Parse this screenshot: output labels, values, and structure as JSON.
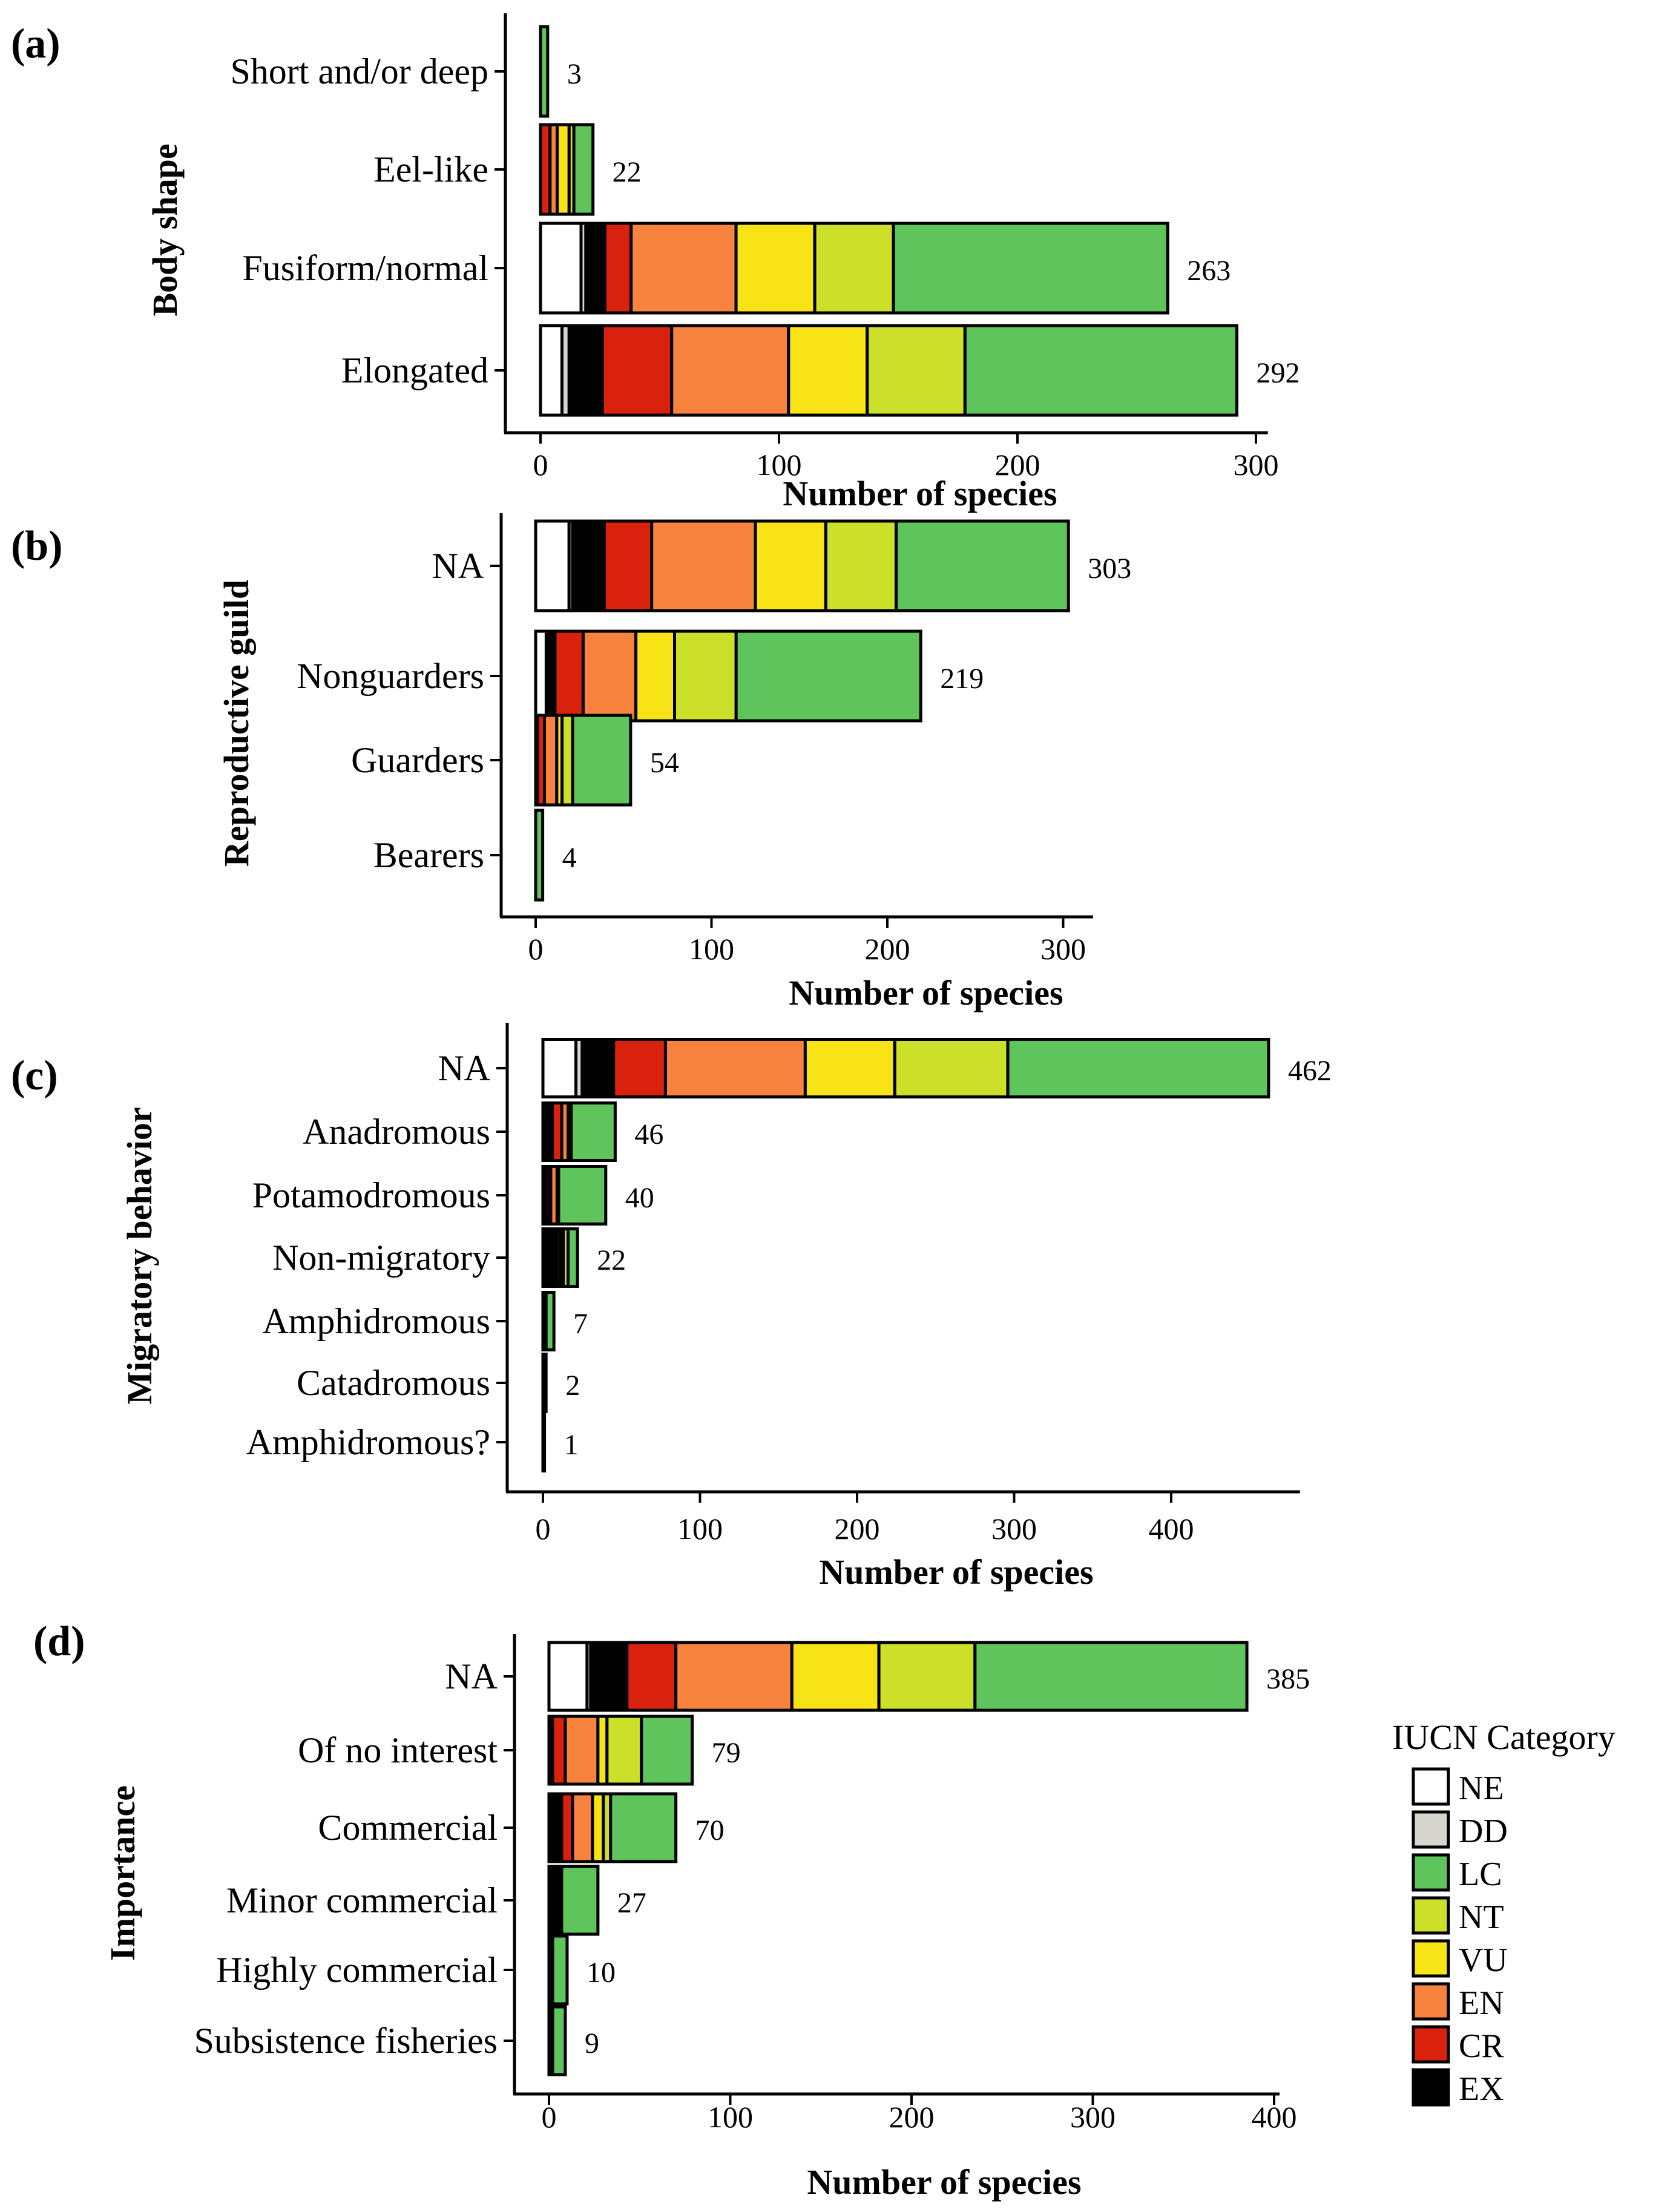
{
  "category_colors": {
    "NE": "#ffffff",
    "DD": "#d6d6ce",
    "LC": "#5fc45c",
    "NT": "#cce02a",
    "VU": "#f7e316",
    "EN": "#f8833f",
    "CR": "#d8220d",
    "EX": "#000000"
  },
  "legend": {
    "title": "IUCN Category",
    "items": [
      "NE",
      "DD",
      "LC",
      "NT",
      "VU",
      "EN",
      "CR",
      "EX"
    ]
  },
  "chart_data": [
    {
      "type": "bar",
      "orientation": "horizontal",
      "stacked": true,
      "panel": "(a)",
      "ylabel": "Body shape",
      "xlabel": "Number of species",
      "xticks": [
        0,
        100,
        200,
        300
      ],
      "xlim": [
        0,
        305
      ],
      "categories": [
        "Short and/or deep",
        "Eel-like",
        "Fusiform/normal",
        "Elongated"
      ],
      "stack_order": [
        "NE",
        "DD",
        "EX",
        "CR",
        "EN",
        "VU",
        "NT",
        "LC"
      ],
      "series": [
        {
          "name": "NE",
          "values": [
            0,
            0,
            17,
            9
          ]
        },
        {
          "name": "DD",
          "values": [
            0,
            0,
            2,
            3
          ]
        },
        {
          "name": "EX",
          "values": [
            0,
            0,
            8,
            14
          ]
        },
        {
          "name": "CR",
          "values": [
            0,
            4,
            11,
            29
          ]
        },
        {
          "name": "EN",
          "values": [
            0,
            3,
            44,
            49
          ]
        },
        {
          "name": "VU",
          "values": [
            0,
            5,
            33,
            33
          ]
        },
        {
          "name": "NT",
          "values": [
            0,
            2,
            33,
            41
          ]
        },
        {
          "name": "LC",
          "values": [
            3,
            8,
            115,
            114
          ]
        }
      ],
      "totals": [
        3,
        22,
        263,
        292
      ]
    },
    {
      "type": "bar",
      "orientation": "horizontal",
      "stacked": true,
      "panel": "(b)",
      "ylabel": "Reproductive guild",
      "xlabel": "Number of species",
      "xticks": [
        0,
        100,
        200,
        300
      ],
      "xlim": [
        0,
        317
      ],
      "categories": [
        "NA",
        "Nonguarders",
        "Guarders",
        "Bearers"
      ],
      "stack_order": [
        "NE",
        "DD",
        "EX",
        "CR",
        "EN",
        "VU",
        "NT",
        "LC"
      ],
      "series": [
        {
          "name": "NE",
          "values": [
            19,
            6,
            0,
            0
          ]
        },
        {
          "name": "DD",
          "values": [
            2,
            1,
            0,
            0
          ]
        },
        {
          "name": "EX",
          "values": [
            18,
            4,
            1,
            0
          ]
        },
        {
          "name": "CR",
          "values": [
            27,
            16,
            4,
            0
          ]
        },
        {
          "name": "EN",
          "values": [
            59,
            30,
            7,
            0
          ]
        },
        {
          "name": "VU",
          "values": [
            40,
            22,
            3,
            0
          ]
        },
        {
          "name": "NT",
          "values": [
            40,
            35,
            6,
            0
          ]
        },
        {
          "name": "LC",
          "values": [
            98,
            105,
            33,
            4
          ]
        }
      ],
      "totals": [
        303,
        219,
        54,
        4
      ]
    },
    {
      "type": "bar",
      "orientation": "horizontal",
      "stacked": true,
      "panel": "(c)",
      "ylabel": "Migratory behavior",
      "xlabel": "Number of species",
      "xticks": [
        0,
        100,
        200,
        300,
        400
      ],
      "xlim": [
        0,
        482
      ],
      "categories": [
        "NA",
        "Anadromous",
        "Potamodromous",
        "Non-migratory",
        "Amphidromous",
        "Catadromous",
        "Amphidromous?"
      ],
      "stack_order": [
        "NE",
        "DD",
        "EX",
        "CR",
        "EN",
        "VU",
        "NT",
        "LC"
      ],
      "series": [
        {
          "name": "NE",
          "values": [
            21,
            0,
            0,
            0,
            0,
            0,
            0
          ]
        },
        {
          "name": "DD",
          "values": [
            4,
            0,
            0,
            0,
            0,
            0,
            0
          ]
        },
        {
          "name": "EX",
          "values": [
            20,
            6,
            3,
            8,
            1,
            2,
            1
          ]
        },
        {
          "name": "CR",
          "values": [
            33,
            6,
            2,
            1,
            0,
            0,
            0
          ]
        },
        {
          "name": "EN",
          "values": [
            89,
            4,
            4,
            2,
            1,
            0,
            0
          ]
        },
        {
          "name": "VU",
          "values": [
            57,
            0,
            0,
            2,
            0,
            0,
            0
          ]
        },
        {
          "name": "NT",
          "values": [
            72,
            2,
            1,
            3,
            0,
            0,
            0
          ]
        },
        {
          "name": "LC",
          "values": [
            166,
            28,
            30,
            6,
            5,
            0,
            0
          ]
        }
      ],
      "totals": [
        462,
        46,
        40,
        22,
        7,
        2,
        1
      ]
    },
    {
      "type": "bar",
      "orientation": "horizontal",
      "stacked": true,
      "panel": "(d)",
      "ylabel": "Importance",
      "xlabel": "Number of species",
      "xticks": [
        0,
        100,
        200,
        300,
        400
      ],
      "xlim": [
        0,
        403
      ],
      "categories": [
        "NA",
        "Of no interest",
        "Commercial",
        "Minor commercial",
        "Highly commercial",
        "Subsistence fisheries"
      ],
      "stack_order": [
        "NE",
        "DD",
        "EX",
        "CR",
        "EN",
        "VU",
        "NT",
        "LC"
      ],
      "series": [
        {
          "name": "NE",
          "values": [
            21,
            0,
            0,
            0,
            0,
            0
          ]
        },
        {
          "name": "DD",
          "values": [
            2,
            0,
            0,
            0,
            0,
            0
          ]
        },
        {
          "name": "EX",
          "values": [
            20,
            2,
            7,
            7,
            2,
            2
          ]
        },
        {
          "name": "CR",
          "values": [
            27,
            7,
            6,
            0,
            0,
            0
          ]
        },
        {
          "name": "EN",
          "values": [
            64,
            18,
            11,
            0,
            0,
            0
          ]
        },
        {
          "name": "VU",
          "values": [
            48,
            5,
            6,
            0,
            0,
            0
          ]
        },
        {
          "name": "NT",
          "values": [
            53,
            19,
            4,
            0,
            0,
            0
          ]
        },
        {
          "name": "LC",
          "values": [
            150,
            28,
            36,
            20,
            8,
            7
          ]
        }
      ],
      "totals": [
        385,
        79,
        70,
        27,
        10,
        9
      ]
    }
  ]
}
